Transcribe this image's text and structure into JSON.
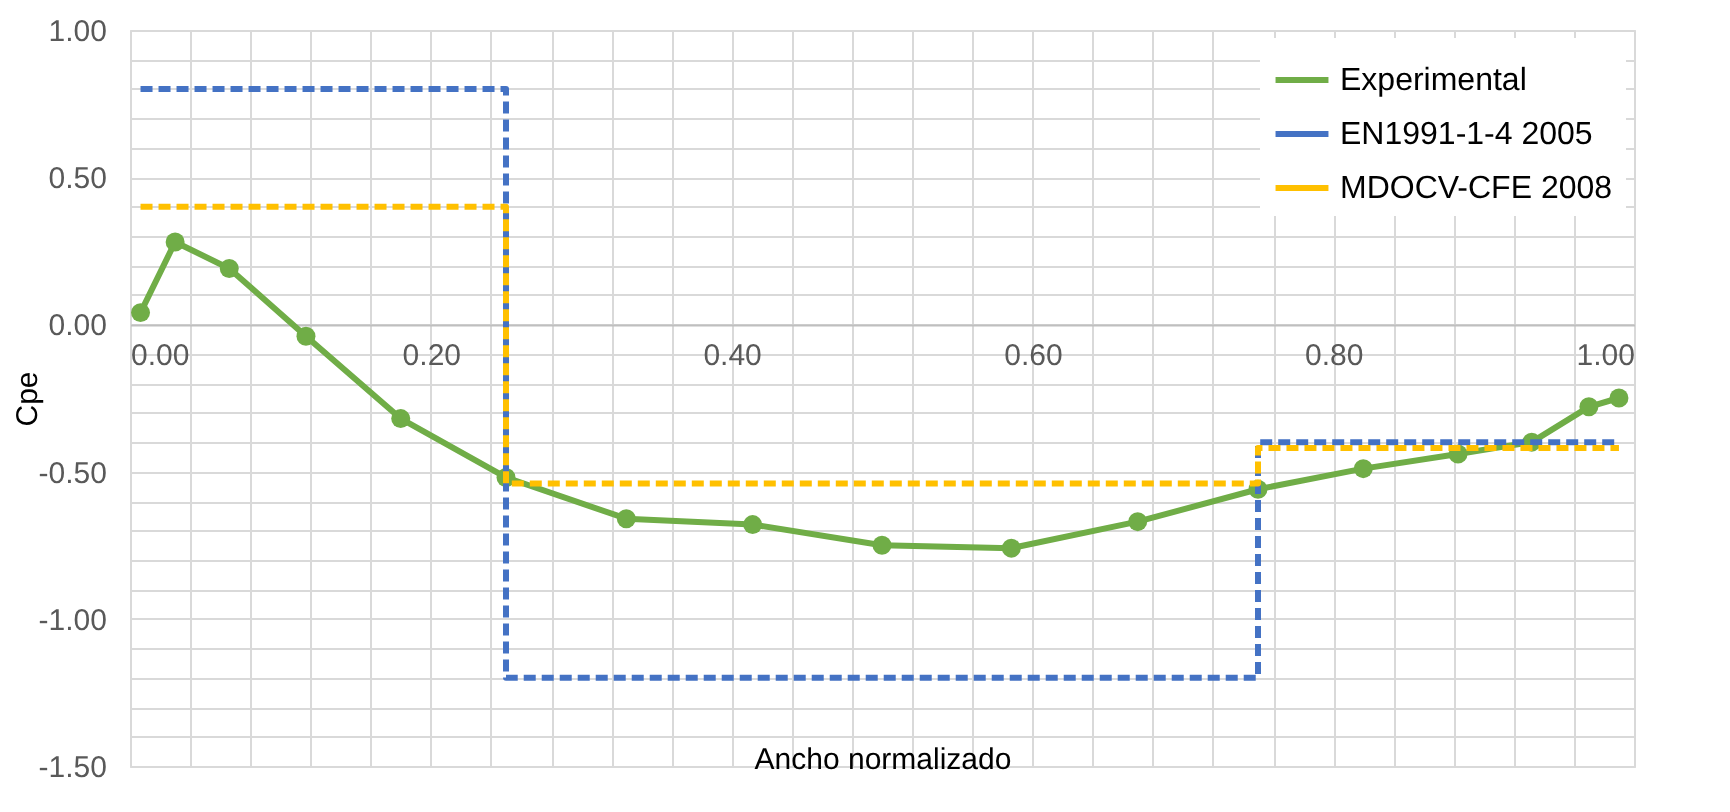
{
  "chart_data": {
    "type": "line",
    "xlabel": "Ancho normalizado",
    "ylabel": "Cpe",
    "xlim": [
      0,
      1
    ],
    "ylim": [
      -1.5,
      1
    ],
    "xticks": [
      {
        "value": 0,
        "label": "0.00"
      },
      {
        "value": 0.04,
        "label": null
      },
      {
        "value": 0.08,
        "label": null
      },
      {
        "value": 0.12,
        "label": null
      },
      {
        "value": 0.16,
        "label": null
      },
      {
        "value": 0.2,
        "label": "0.20"
      },
      {
        "value": 0.24,
        "label": null
      },
      {
        "value": 0.28,
        "label": null
      },
      {
        "value": 0.32,
        "label": null
      },
      {
        "value": 0.36,
        "label": null
      },
      {
        "value": 0.4,
        "label": "0.40"
      },
      {
        "value": 0.44,
        "label": null
      },
      {
        "value": 0.48,
        "label": null
      },
      {
        "value": 0.52,
        "label": null
      },
      {
        "value": 0.56,
        "label": null
      },
      {
        "value": 0.6,
        "label": "0.60"
      },
      {
        "value": 0.64,
        "label": null
      },
      {
        "value": 0.68,
        "label": null
      },
      {
        "value": 0.72,
        "label": null
      },
      {
        "value": 0.76,
        "label": null
      },
      {
        "value": 0.8,
        "label": "0.80"
      },
      {
        "value": 0.84,
        "label": null
      },
      {
        "value": 0.88,
        "label": null
      },
      {
        "value": 0.92,
        "label": null
      },
      {
        "value": 0.96,
        "label": null
      },
      {
        "value": 1,
        "label": "1.00"
      }
    ],
    "yticks": [
      {
        "value": -1.5,
        "label": "-1.50"
      },
      {
        "value": -1.4,
        "label": null
      },
      {
        "value": -1.3,
        "label": null
      },
      {
        "value": -1.2,
        "label": null
      },
      {
        "value": -1.1,
        "label": null
      },
      {
        "value": -1,
        "label": "-1.00"
      },
      {
        "value": -0.9,
        "label": null
      },
      {
        "value": -0.8,
        "label": null
      },
      {
        "value": -0.7,
        "label": null
      },
      {
        "value": -0.6,
        "label": null
      },
      {
        "value": -0.5,
        "label": "-0.50"
      },
      {
        "value": -0.4,
        "label": null
      },
      {
        "value": -0.3,
        "label": null
      },
      {
        "value": -0.2,
        "label": null
      },
      {
        "value": -0.1,
        "label": null
      },
      {
        "value": 0,
        "label": "0.00"
      },
      {
        "value": 0.1,
        "label": null
      },
      {
        "value": 0.2,
        "label": null
      },
      {
        "value": 0.3,
        "label": null
      },
      {
        "value": 0.4,
        "label": null
      },
      {
        "value": 0.5,
        "label": "0.50"
      },
      {
        "value": 0.6,
        "label": null
      },
      {
        "value": 0.7,
        "label": null
      },
      {
        "value": 0.8,
        "label": null
      },
      {
        "value": 0.9,
        "label": null
      },
      {
        "value": 1,
        "label": "1.00"
      }
    ],
    "grid": true,
    "legend": "top right",
    "series": [
      {
        "name": "Experimental",
        "color": "#70ad47",
        "marker": "circle",
        "line_style": "solid",
        "x": [
          0.007,
          0.03,
          0.066,
          0.117,
          0.18,
          0.25,
          0.33,
          0.414,
          0.5,
          0.586,
          0.67,
          0.75,
          0.82,
          0.883,
          0.932,
          0.97,
          0.99
        ],
        "values": [
          0.04,
          0.28,
          0.19,
          -0.04,
          -0.32,
          -0.52,
          -0.66,
          -0.68,
          -0.75,
          -0.76,
          -0.67,
          -0.56,
          -0.49,
          -0.44,
          -0.4,
          -0.28,
          -0.25
        ]
      },
      {
        "name": "EN1991-1-4 2005",
        "type": "step",
        "color": "#4472c4",
        "marker": "none",
        "line_style": "dashed",
        "x": [
          0.007,
          0.25,
          0.75,
          0.99
        ],
        "values": [
          0.8,
          -1.2,
          -0.4,
          -0.4
        ]
      },
      {
        "name": "MDOCV-CFE 2008",
        "type": "step",
        "color": "#ffc000",
        "marker": "none",
        "line_style": "dashed",
        "x": [
          0.007,
          0.25,
          0.75,
          0.99
        ],
        "values": [
          0.4,
          -0.54,
          -0.42,
          -0.42
        ]
      }
    ]
  }
}
